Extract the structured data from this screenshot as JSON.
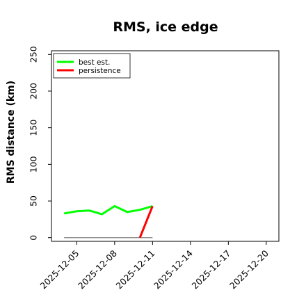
{
  "chart_data": {
    "type": "line",
    "title": "RMS, ice edge",
    "xlabel": "",
    "ylabel": "RMS distance (km)",
    "ylim": [
      -5,
      255
    ],
    "xlim": [
      "2025-12-03",
      "2025-12-21"
    ],
    "y_ticks": [
      0,
      50,
      100,
      150,
      200,
      250
    ],
    "x_ticks": [
      "2025-12-05",
      "2025-12-08",
      "2025-12-11",
      "2025-12-14",
      "2025-12-17",
      "2025-12-20"
    ],
    "grid": false,
    "legend_position": "top-left",
    "reference_line": {
      "y": 0,
      "x_start": "2025-12-04",
      "x_end": "2025-12-11",
      "color": "#808080"
    },
    "series": [
      {
        "name": "best est.",
        "color": "#00ff00",
        "points": [
          [
            "2025-12-04",
            33
          ],
          [
            "2025-12-05",
            36
          ],
          [
            "2025-12-06",
            37
          ],
          [
            "2025-12-07",
            32
          ],
          [
            "2025-12-08",
            43
          ],
          [
            "2025-12-09",
            35
          ],
          [
            "2025-12-10",
            38
          ],
          [
            "2025-12-11",
            43
          ]
        ]
      },
      {
        "name": "persistence",
        "color": "#ff0000",
        "points": [
          [
            "2025-12-10",
            0
          ],
          [
            "2025-12-11",
            43
          ]
        ]
      }
    ]
  }
}
